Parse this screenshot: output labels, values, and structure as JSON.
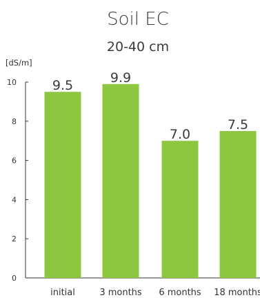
{
  "chart_data": {
    "type": "bar",
    "title": "Soil EC",
    "subtitle": "20-40 cm",
    "ylabel": "[dS/m]",
    "xlabel": "",
    "categories": [
      "initial",
      "3 months",
      "6 months",
      "18 months"
    ],
    "values": [
      9.5,
      9.9,
      7.0,
      7.5
    ],
    "data_labels": [
      "9.5",
      "9.9",
      "7.0",
      "7.5"
    ],
    "ylim": [
      0,
      10
    ],
    "yticks": [
      0,
      2,
      4,
      6,
      8,
      10
    ],
    "grid": false,
    "legend": "none",
    "bar_color": "#8dc63f"
  }
}
